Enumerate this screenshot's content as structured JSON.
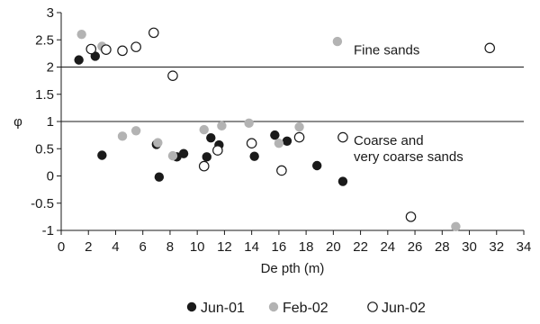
{
  "chart_data": {
    "type": "scatter",
    "title": "",
    "xlabel": "De pth (m)",
    "ylabel": "φ",
    "xlim": [
      0,
      34
    ],
    "ylim": [
      -1,
      3
    ],
    "xticks": [
      0,
      2,
      4,
      6,
      8,
      10,
      12,
      14,
      16,
      18,
      20,
      22,
      24,
      26,
      28,
      30,
      32,
      34
    ],
    "yticks": [
      -1,
      -0.5,
      0,
      0.5,
      1,
      1.5,
      2,
      2.5,
      3
    ],
    "ytick_labels": [
      "-1",
      "-0.5",
      "0",
      "0.5",
      "1",
      "1.5",
      "2",
      "2.5",
      "3"
    ],
    "grid": false,
    "legend_position": "bottom",
    "reference_lines": [
      {
        "y": 2,
        "label": "Fine sands"
      },
      {
        "y": 1,
        "label": "Coarse and very coarse sands"
      }
    ],
    "annotations": {
      "fine": "Fine sands",
      "coarse_line1": "Coarse and",
      "coarse_line2": "very coarse sands"
    },
    "series": [
      {
        "name": "Jun-01",
        "marker": "filled",
        "color": "#1a1a1a",
        "points": [
          [
            1.3,
            2.13
          ],
          [
            2.5,
            2.2
          ],
          [
            3.0,
            0.38
          ],
          [
            7.0,
            0.58
          ],
          [
            7.2,
            -0.02
          ],
          [
            8.5,
            0.35
          ],
          [
            9.0,
            0.41
          ],
          [
            10.7,
            0.35
          ],
          [
            11.0,
            0.7
          ],
          [
            11.6,
            0.57
          ],
          [
            14.2,
            0.36
          ],
          [
            15.7,
            0.75
          ],
          [
            16.6,
            0.64
          ],
          [
            18.8,
            0.19
          ],
          [
            20.7,
            -0.1
          ]
        ]
      },
      {
        "name": "Feb-02",
        "marker": "filled",
        "color": "#b3b3b3",
        "points": [
          [
            1.5,
            2.6
          ],
          [
            3.0,
            2.38
          ],
          [
            4.5,
            0.73
          ],
          [
            5.5,
            0.83
          ],
          [
            7.1,
            0.61
          ],
          [
            8.2,
            0.37
          ],
          [
            10.5,
            0.85
          ],
          [
            11.8,
            0.92
          ],
          [
            13.8,
            0.97
          ],
          [
            16.0,
            0.6
          ],
          [
            17.5,
            0.9
          ],
          [
            20.3,
            2.47
          ],
          [
            29.0,
            -0.93
          ]
        ]
      },
      {
        "name": "Jun-02",
        "marker": "hollow",
        "color": "#1a1a1a",
        "points": [
          [
            2.2,
            2.33
          ],
          [
            3.3,
            2.32
          ],
          [
            4.5,
            2.3
          ],
          [
            5.5,
            2.37
          ],
          [
            6.8,
            2.63
          ],
          [
            8.2,
            1.84
          ],
          [
            10.5,
            0.18
          ],
          [
            11.5,
            0.47
          ],
          [
            14.0,
            0.6
          ],
          [
            16.2,
            0.1
          ],
          [
            17.5,
            0.71
          ],
          [
            20.7,
            0.71
          ],
          [
            25.7,
            -0.75
          ],
          [
            31.5,
            2.35
          ]
        ]
      }
    ]
  }
}
